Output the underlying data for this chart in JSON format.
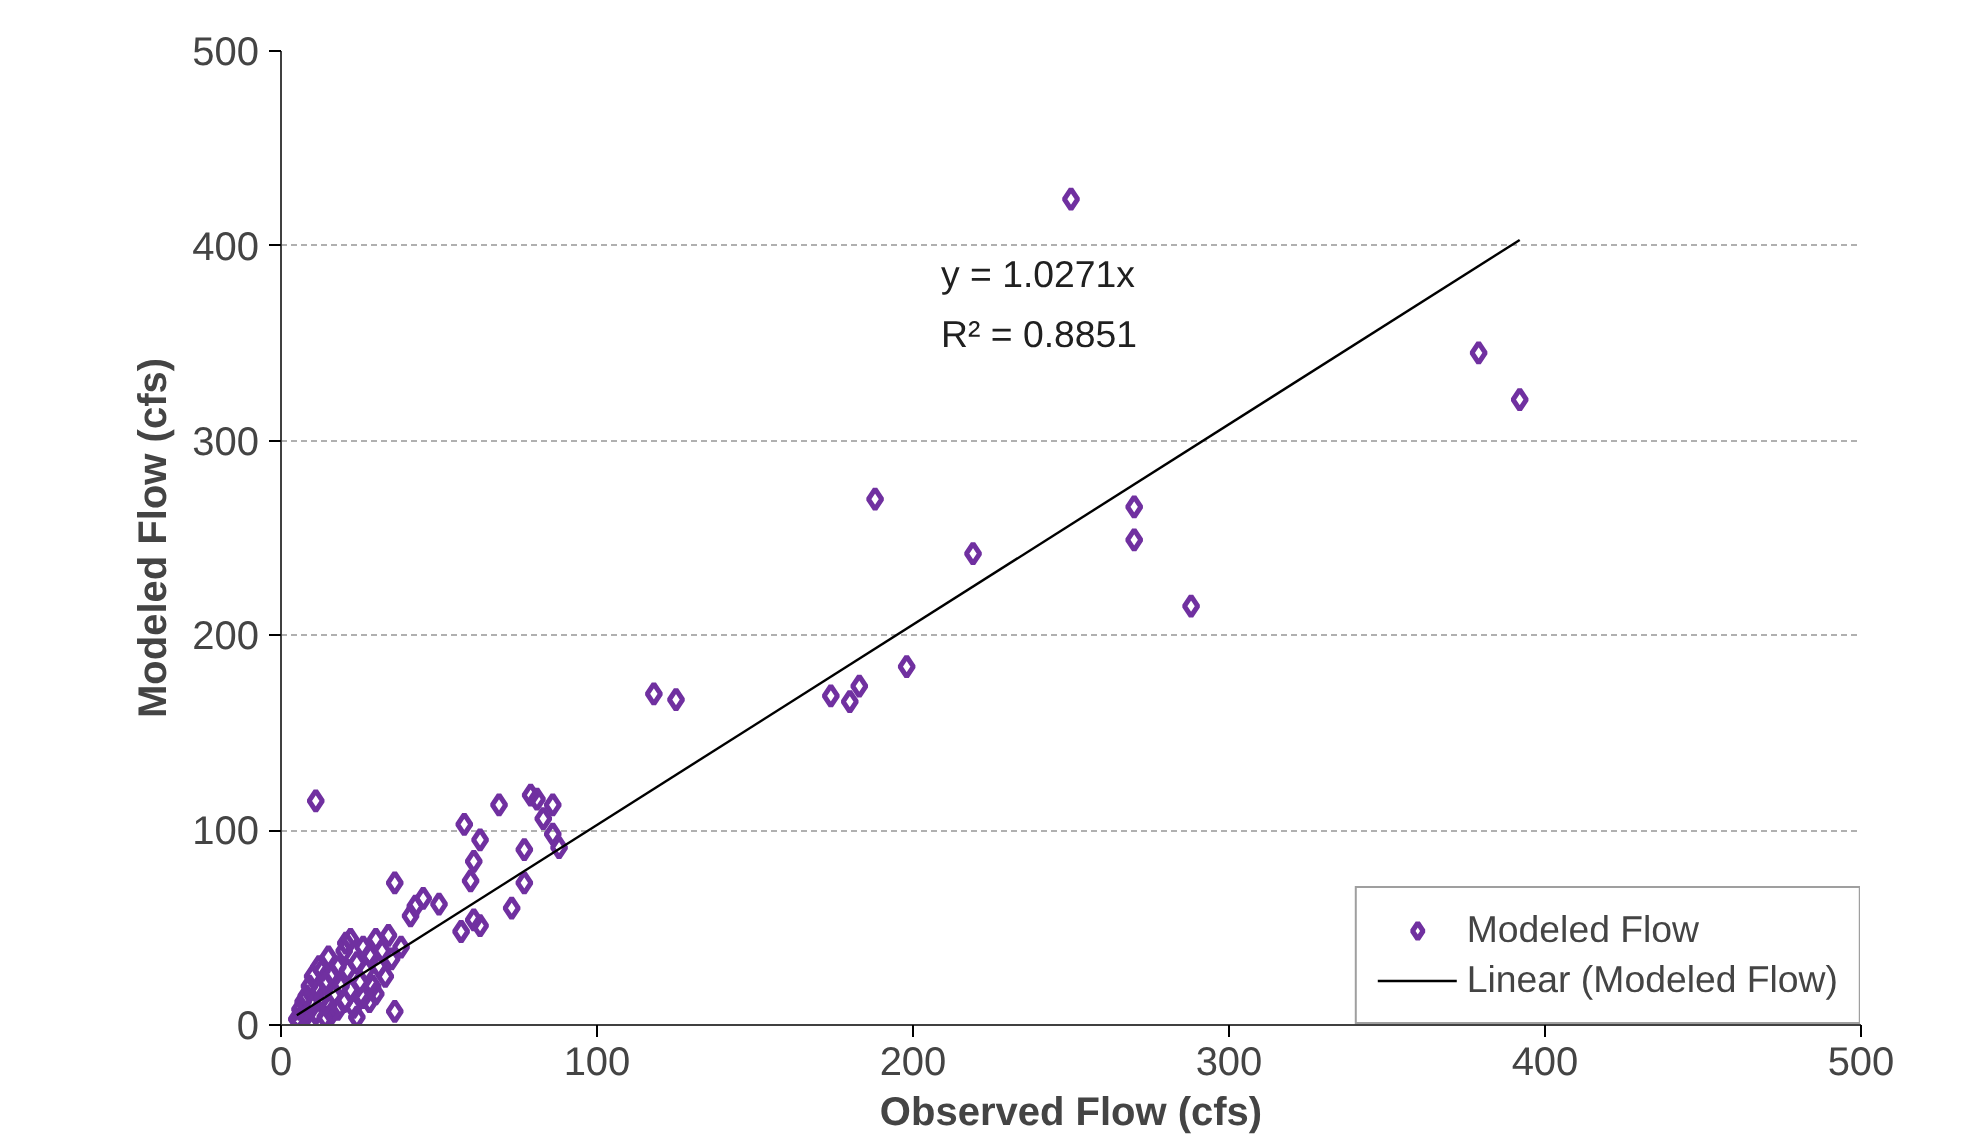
{
  "chart_data": {
    "type": "scatter",
    "xlabel": "Observed Flow (cfs)",
    "ylabel": "Modeled Flow (cfs)",
    "annotations": [
      "y = 1.0271x",
      "R² = 0.8851"
    ],
    "xlim": [
      0,
      500
    ],
    "ylim": [
      0,
      500
    ],
    "xticks": [
      0,
      100,
      200,
      300,
      400,
      500
    ],
    "yticks": [
      0,
      100,
      200,
      300,
      400,
      500
    ],
    "grid": "y",
    "legend": "bottom right",
    "series": [
      {
        "name": "Modeled Flow",
        "marker": "diamond",
        "color": "#7030a0",
        "x": [
          250,
          379,
          392,
          270,
          270,
          288,
          188,
          219,
          198,
          174,
          180,
          183,
          118,
          125,
          11,
          36,
          36,
          69,
          58,
          63,
          61,
          60,
          77,
          77,
          73,
          79,
          81,
          86,
          83,
          86,
          88,
          57,
          61,
          63,
          50,
          45,
          42.5,
          41,
          20.5,
          5,
          6,
          7,
          8,
          8,
          9,
          10,
          10,
          11,
          12,
          12,
          13,
          14,
          14,
          15,
          15,
          16,
          17,
          18,
          18,
          19,
          20,
          20,
          21,
          22,
          23,
          24,
          25,
          26,
          26,
          27,
          28,
          29,
          30,
          31,
          32,
          33,
          34,
          35,
          38,
          6,
          9,
          13,
          16,
          22,
          24,
          28,
          30
        ],
        "values": [
          424,
          345,
          321,
          266,
          249,
          215,
          270,
          242,
          184,
          169,
          166,
          174,
          170,
          167,
          115,
          73,
          7,
          113,
          103,
          95,
          84,
          74,
          90,
          73,
          60,
          118,
          116,
          113,
          106,
          98,
          91,
          48,
          54,
          51,
          62,
          65,
          61,
          56,
          42,
          3,
          8,
          12,
          5,
          15,
          20,
          10,
          25,
          6,
          18,
          30,
          14,
          4,
          22,
          10,
          35,
          26,
          16,
          8,
          30,
          20,
          12,
          38,
          28,
          18,
          9,
          32,
          22,
          14,
          40,
          28,
          36,
          20,
          44,
          30,
          38,
          25,
          46,
          34,
          40,
          2,
          1,
          28,
          6,
          44,
          4,
          12,
          16
        ]
      },
      {
        "name": "Linear (Modeled Flow)",
        "type": "line",
        "color": "#000000",
        "x": [
          5,
          392
        ],
        "values": [
          5,
          403
        ]
      }
    ]
  }
}
